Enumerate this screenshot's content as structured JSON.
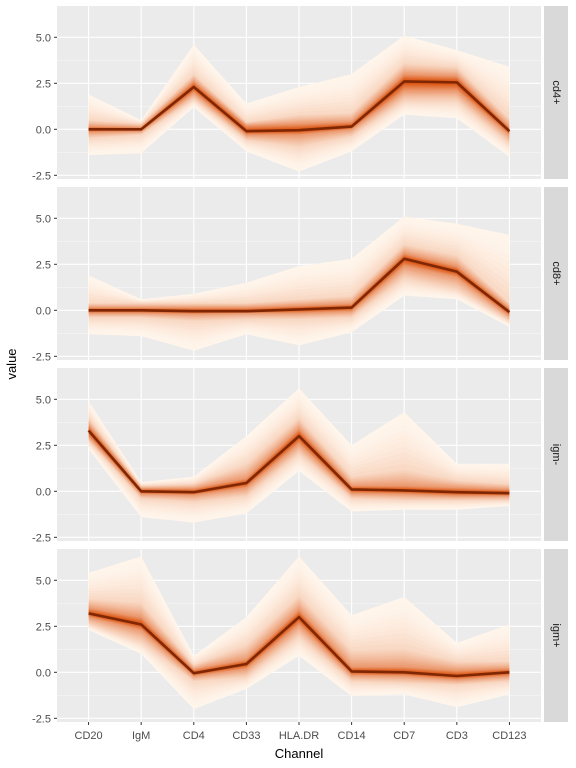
{
  "chart_data": {
    "type": "area",
    "xlabel": "Channel",
    "ylabel": "value",
    "ylim": [
      -2.7,
      6.7
    ],
    "yticks": [
      -2.5,
      0.0,
      2.5,
      5.0
    ],
    "ytick_labels": [
      "-2.5",
      "0.0",
      "2.5",
      "5.0"
    ],
    "categories": [
      "CD20",
      "IgM",
      "CD4",
      "CD33",
      "HLA.DR",
      "CD14",
      "CD7",
      "CD3",
      "CD123"
    ],
    "grid": true,
    "colors": {
      "panel_bg": "#ebebeb",
      "grid_major": "#ffffff",
      "strip_bg": "#d9d9d9",
      "band_light": "#fff5eb",
      "band_dark": "#d94801",
      "median_line": "#7f2704"
    },
    "panels": [
      {
        "label": "cd4+",
        "median": [
          0.0,
          0.0,
          2.3,
          -0.1,
          -0.05,
          0.15,
          2.6,
          2.55,
          -0.1
        ],
        "bands": [
          {
            "lower": [
              -1.4,
              -1.3,
              1.2,
              -1.2,
              -2.3,
              -1.2,
              0.8,
              0.6,
              -1.5
            ],
            "upper": [
              1.9,
              0.5,
              4.6,
              1.4,
              2.3,
              3.0,
              5.1,
              4.3,
              3.4
            ]
          },
          {
            "lower": [
              -0.5,
              -0.3,
              1.6,
              -0.6,
              -1.0,
              -0.4,
              1.5,
              1.5,
              -0.8
            ],
            "upper": [
              0.5,
              0.3,
              3.0,
              0.4,
              0.8,
              0.9,
              3.6,
              3.4,
              0.6
            ]
          },
          {
            "lower": [
              -0.15,
              -0.1,
              2.0,
              -0.3,
              -0.3,
              0.0,
              2.1,
              2.1,
              -0.3
            ],
            "upper": [
              0.15,
              0.1,
              2.6,
              0.2,
              0.3,
              0.4,
              3.0,
              2.9,
              0.1
            ]
          }
        ]
      },
      {
        "label": "cd8+",
        "median": [
          0.0,
          0.0,
          -0.05,
          -0.05,
          0.05,
          0.15,
          2.8,
          2.1,
          -0.1
        ],
        "bands": [
          {
            "lower": [
              -1.3,
              -1.4,
              -2.2,
              -1.3,
              -1.9,
              -1.2,
              0.8,
              0.6,
              -0.9
            ],
            "upper": [
              1.9,
              0.6,
              0.9,
              1.5,
              2.4,
              2.8,
              5.1,
              4.7,
              4.1
            ]
          },
          {
            "lower": [
              -0.4,
              -0.4,
              -0.6,
              -0.5,
              -0.5,
              -0.4,
              1.7,
              1.1,
              -0.6
            ],
            "upper": [
              0.4,
              0.4,
              0.4,
              0.4,
              0.6,
              0.8,
              3.6,
              3.0,
              0.4
            ]
          },
          {
            "lower": [
              -0.15,
              -0.15,
              -0.2,
              -0.15,
              -0.15,
              -0.05,
              2.4,
              1.8,
              -0.3
            ],
            "upper": [
              0.15,
              0.15,
              0.15,
              0.15,
              0.25,
              0.35,
              3.1,
              2.4,
              0.1
            ]
          }
        ]
      },
      {
        "label": "igm-",
        "median": [
          3.3,
          0.0,
          -0.05,
          0.45,
          3.0,
          0.1,
          0.05,
          -0.05,
          -0.1
        ],
        "bands": [
          {
            "lower": [
              2.3,
              -1.4,
              -1.7,
              -1.2,
              1.1,
              -1.1,
              -1.0,
              -1.0,
              -0.8
            ],
            "upper": [
              4.9,
              0.5,
              0.8,
              3.0,
              5.6,
              2.5,
              4.3,
              1.5,
              1.5
            ]
          },
          {
            "lower": [
              2.7,
              -0.4,
              -0.6,
              -0.3,
              2.0,
              -0.4,
              -0.5,
              -0.5,
              -0.5
            ],
            "upper": [
              4.0,
              0.3,
              0.4,
              1.5,
              4.0,
              0.8,
              1.2,
              0.6,
              0.4
            ]
          },
          {
            "lower": [
              3.0,
              -0.15,
              -0.2,
              0.2,
              2.6,
              -0.1,
              -0.15,
              -0.25,
              -0.25
            ],
            "upper": [
              3.6,
              0.15,
              0.15,
              0.7,
              3.4,
              0.3,
              0.3,
              0.2,
              0.1
            ]
          }
        ]
      },
      {
        "label": "igm+",
        "median": [
          3.2,
          2.6,
          -0.05,
          0.45,
          3.0,
          0.05,
          0.0,
          -0.2,
          0.0
        ],
        "bands": [
          {
            "lower": [
              2.3,
              1.0,
              -2.0,
              -0.9,
              0.9,
              -1.3,
              -1.2,
              -1.9,
              -1.2
            ],
            "upper": [
              5.4,
              6.3,
              0.9,
              3.0,
              6.3,
              3.1,
              4.1,
              1.6,
              2.6
            ]
          },
          {
            "lower": [
              2.6,
              1.6,
              -0.5,
              -0.3,
              1.9,
              -0.5,
              -0.6,
              -0.7,
              -0.5
            ],
            "upper": [
              4.0,
              3.8,
              0.4,
              1.5,
              4.2,
              1.2,
              1.3,
              0.6,
              0.6
            ]
          },
          {
            "lower": [
              3.0,
              2.3,
              -0.2,
              0.2,
              2.6,
              -0.15,
              -0.2,
              -0.4,
              -0.2
            ],
            "upper": [
              3.5,
              3.0,
              0.15,
              0.7,
              3.4,
              0.3,
              0.3,
              0.1,
              0.2
            ]
          }
        ]
      }
    ]
  }
}
